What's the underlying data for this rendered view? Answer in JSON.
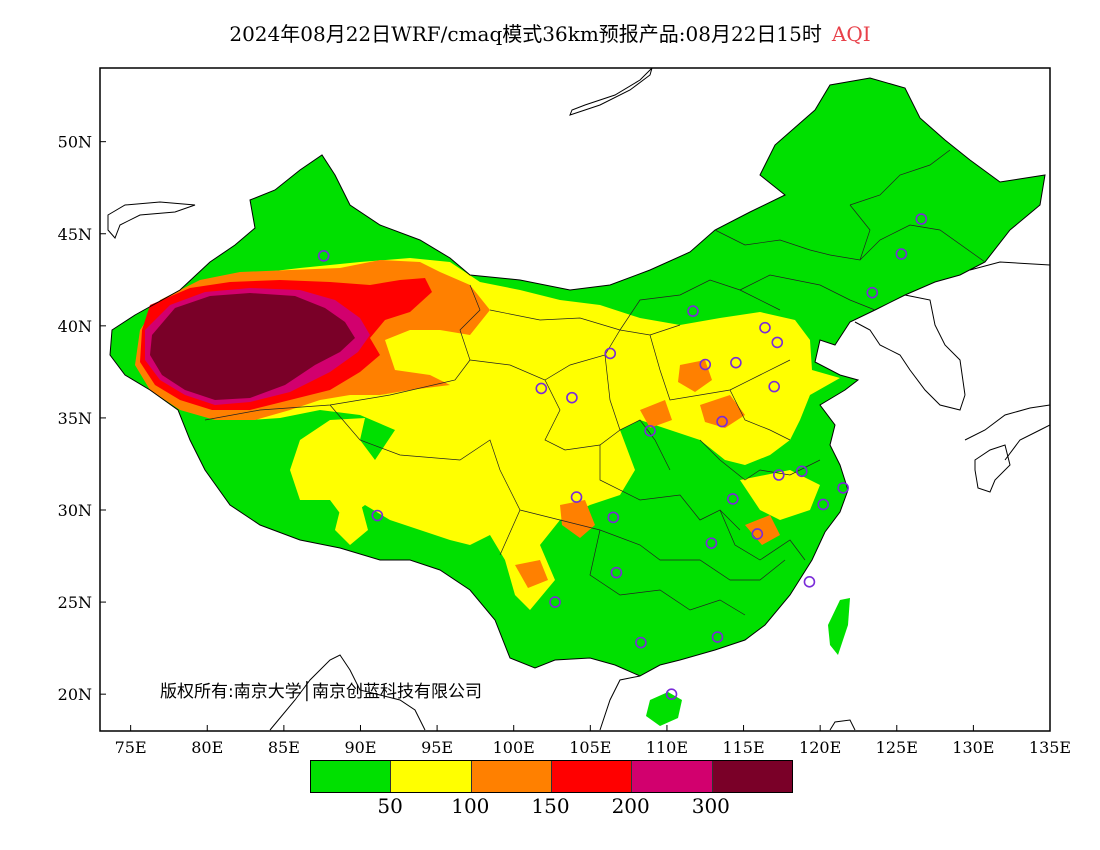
{
  "title": {
    "text": "2024年08月22日WRF/cmaq模式36km预报产品:08月22日15时",
    "variable": "AQI",
    "variable_color": "#e8414a"
  },
  "map": {
    "region": "China",
    "lon_range": [
      73,
      135
    ],
    "lat_range": [
      18,
      54
    ],
    "y_ticks": [
      {
        "lat": 50,
        "label": "50N"
      },
      {
        "lat": 45,
        "label": "45N"
      },
      {
        "lat": 40,
        "label": "40N"
      },
      {
        "lat": 35,
        "label": "35N"
      },
      {
        "lat": 30,
        "label": "30N"
      },
      {
        "lat": 25,
        "label": "25N"
      },
      {
        "lat": 20,
        "label": "20N"
      }
    ],
    "x_ticks": [
      {
        "lon": 75,
        "label": "75E"
      },
      {
        "lon": 80,
        "label": "80E"
      },
      {
        "lon": 85,
        "label": "85E"
      },
      {
        "lon": 90,
        "label": "90E"
      },
      {
        "lon": 95,
        "label": "95E"
      },
      {
        "lon": 100,
        "label": "100E"
      },
      {
        "lon": 105,
        "label": "105E"
      },
      {
        "lon": 110,
        "label": "110E"
      },
      {
        "lon": 115,
        "label": "115E"
      },
      {
        "lon": 120,
        "label": "120E"
      },
      {
        "lon": 125,
        "label": "125E"
      },
      {
        "lon": 130,
        "label": "130E"
      },
      {
        "lon": 135,
        "label": "135E"
      }
    ],
    "copyright": "版权所有:南京大学│南京创蓝科技有限公司"
  },
  "legend": {
    "colors": [
      "#00e000",
      "#ffff00",
      "#ff8000",
      "#ff0000",
      "#d2006e",
      "#7a0028"
    ],
    "labels": [
      {
        "value": "50",
        "boundary": 1
      },
      {
        "value": "100",
        "boundary": 2
      },
      {
        "value": "150",
        "boundary": 3
      },
      {
        "value": "200",
        "boundary": 4
      },
      {
        "value": "300",
        "boundary": 5
      }
    ]
  },
  "stations": [
    {
      "lon": 87.6,
      "lat": 43.8
    },
    {
      "lon": 126.6,
      "lat": 45.8
    },
    {
      "lon": 125.3,
      "lat": 43.9
    },
    {
      "lon": 123.4,
      "lat": 41.8
    },
    {
      "lon": 111.7,
      "lat": 40.8
    },
    {
      "lon": 114.5,
      "lat": 38.0
    },
    {
      "lon": 116.4,
      "lat": 39.9
    },
    {
      "lon": 117.2,
      "lat": 39.1
    },
    {
      "lon": 112.5,
      "lat": 37.9
    },
    {
      "lon": 106.3,
      "lat": 38.5
    },
    {
      "lon": 101.8,
      "lat": 36.6
    },
    {
      "lon": 103.8,
      "lat": 36.1
    },
    {
      "lon": 117.0,
      "lat": 36.7
    },
    {
      "lon": 113.6,
      "lat": 34.8
    },
    {
      "lon": 108.9,
      "lat": 34.3
    },
    {
      "lon": 117.3,
      "lat": 31.9
    },
    {
      "lon": 118.8,
      "lat": 32.1
    },
    {
      "lon": 121.5,
      "lat": 31.2
    },
    {
      "lon": 120.2,
      "lat": 30.3
    },
    {
      "lon": 114.3,
      "lat": 30.6
    },
    {
      "lon": 104.1,
      "lat": 30.7
    },
    {
      "lon": 106.5,
      "lat": 29.6
    },
    {
      "lon": 91.1,
      "lat": 29.7
    },
    {
      "lon": 112.9,
      "lat": 28.2
    },
    {
      "lon": 115.9,
      "lat": 28.7
    },
    {
      "lon": 106.7,
      "lat": 26.6
    },
    {
      "lon": 119.3,
      "lat": 26.1
    },
    {
      "lon": 102.7,
      "lat": 25.0
    },
    {
      "lon": 108.3,
      "lat": 22.8
    },
    {
      "lon": 113.3,
      "lat": 23.1
    },
    {
      "lon": 110.3,
      "lat": 20.0
    }
  ]
}
